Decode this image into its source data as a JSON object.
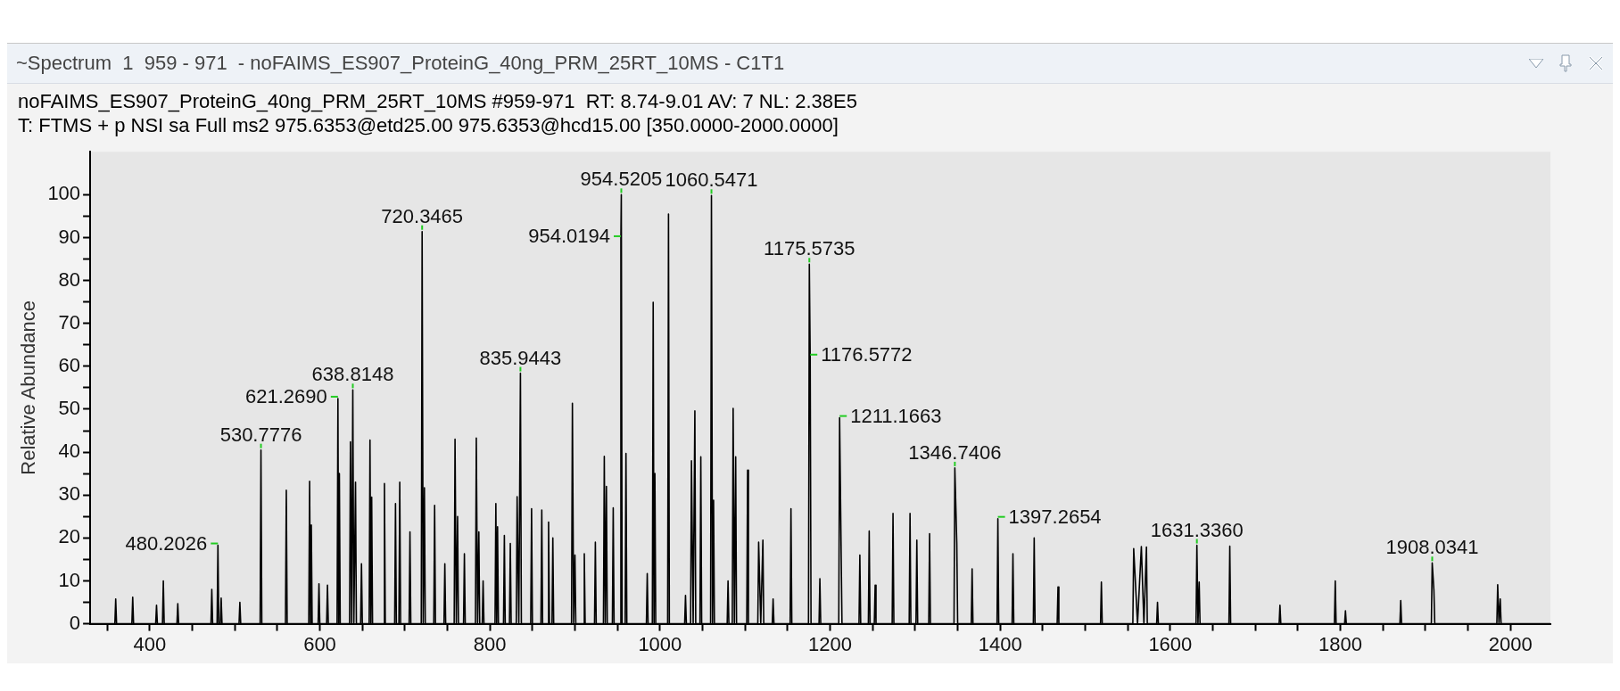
{
  "chart_data": {
    "type": "line",
    "title": "~Spectrum  1  959 - 971  - noFAIMS_ES907_ProteinG_40ng_PRM_25RT_10MS - C1T1",
    "subtitle": "noFAIMS_ES907_ProteinG_40ng_PRM_25RT_10MS #959-971  RT: 8.74-9.01 AV: 7 NL: 2.38E5",
    "ylabel": "Relative Abundance",
    "marker": "none",
    "line_style": "solid",
    "xlim": [
      330,
      2047
    ],
    "ylim": [
      0,
      110
    ],
    "xticks": [
      {
        "value": 350,
        "label": null
      },
      400,
      {
        "value": 450,
        "label": null
      },
      {
        "value": 500,
        "label": null
      },
      {
        "value": 550,
        "label": null
      },
      600,
      {
        "value": 650,
        "label": null
      },
      {
        "value": 700,
        "label": null
      },
      {
        "value": 750,
        "label": null
      },
      800,
      {
        "value": 850,
        "label": null
      },
      {
        "value": 900,
        "label": null
      },
      {
        "value": 950,
        "label": null
      },
      1000,
      {
        "value": 1050,
        "label": null
      },
      {
        "value": 1100,
        "label": null
      },
      {
        "value": 1150,
        "label": null
      },
      1200,
      {
        "value": 1250,
        "label": null
      },
      {
        "value": 1300,
        "label": null
      },
      {
        "value": 1350,
        "label": null
      },
      1400,
      {
        "value": 1450,
        "label": null
      },
      {
        "value": 1500,
        "label": null
      },
      {
        "value": 1550,
        "label": null
      },
      1600,
      {
        "value": 1650,
        "label": null
      },
      {
        "value": 1700,
        "label": null
      },
      {
        "value": 1750,
        "label": null
      },
      1800,
      {
        "value": 1850,
        "label": null
      },
      {
        "value": 1900,
        "label": null
      },
      {
        "value": 1950,
        "label": null
      },
      2000
    ],
    "yticks": [
      0,
      {
        "value": 5,
        "label": null
      },
      10,
      {
        "value": 15,
        "label": null
      },
      20,
      {
        "value": 25,
        "label": null
      },
      30,
      {
        "value": 35,
        "label": null
      },
      40,
      {
        "value": 45,
        "label": null
      },
      50,
      {
        "value": 55,
        "label": null
      },
      60,
      {
        "value": 65,
        "label": null
      },
      70,
      {
        "value": 75,
        "label": null
      },
      80,
      {
        "value": 85,
        "label": null
      },
      90,
      {
        "value": 95,
        "label": null
      },
      100
    ],
    "annotations": [
      "T: FTMS + p NSI sa Full ms2 975.6353@etd25.00 975.6353@hcd15.00 [350.0000-2000.0000]",
      {
        "text": "954.5205",
        "x": 954.5,
        "y": 100
      },
      {
        "text": "1060.5471",
        "x": 1060.5,
        "y": 99.8
      },
      {
        "text": "720.3465",
        "x": 720.3,
        "y": 91.4
      },
      {
        "text": "954.0194",
        "x": 954,
        "y": 89.9
      },
      {
        "text": "1175.5735",
        "x": 1175.6,
        "y": 83.8
      },
      {
        "text": "1176.5772",
        "x": 1176.6,
        "y": 62.3
      },
      {
        "text": "835.9443",
        "x": 835.9,
        "y": 58.4
      },
      {
        "text": "621.2690",
        "x": 621.3,
        "y": 52.5
      },
      {
        "text": "638.8148",
        "x": 638.8,
        "y": 54.5
      },
      {
        "text": "1211.1663",
        "x": 1211.2,
        "y": 48
      },
      {
        "text": "530.7776",
        "x": 530.8,
        "y": 40.5
      },
      {
        "text": "1346.7406",
        "x": 1346.7,
        "y": 36.3
      },
      {
        "text": "1397.2654",
        "x": 1397.3,
        "y": 24.5
      },
      {
        "text": "480.2026",
        "x": 480.2,
        "y": 18.3
      },
      {
        "text": "1631.3360",
        "x": 1631.3,
        "y": 18.3
      },
      {
        "text": "1908.0341",
        "x": 1908,
        "y": 14.2
      }
    ],
    "series": [
      {
        "color": "#000000",
        "x": [
          331,
          359,
          360,
          361,
          379,
          380,
          381,
          407,
          408,
          409,
          415,
          416,
          417,
          432,
          433,
          434,
          472,
          473,
          474,
          479.2,
          480.2,
          481.2,
          483,
          484,
          485,
          505,
          506,
          507,
          529.8,
          530.8,
          531.8,
          559.6,
          560.6,
          561.6,
          587,
          588,
          589,
          590,
          591,
          598,
          599,
          600,
          608,
          609,
          610,
          620.3,
          621.3,
          622.2,
          623,
          624,
          635,
          636,
          637.4,
          638.8,
          640,
          642,
          643,
          648,
          649,
          650,
          658,
          659,
          660,
          661,
          662,
          675,
          676,
          677,
          688,
          689,
          690,
          693,
          694,
          695,
          705,
          706,
          707,
          719.3,
          720.3,
          721.6,
          723,
          724,
          734,
          735,
          736,
          746,
          747,
          748,
          758,
          759,
          760.5,
          762,
          763,
          769,
          770,
          771,
          783,
          784,
          785.5,
          787,
          788,
          791,
          792,
          793,
          806,
          807,
          808,
          809,
          810,
          816,
          817,
          818,
          823,
          824,
          825,
          831,
          832,
          834,
          835.9,
          837,
          848,
          849,
          850,
          860,
          861,
          862,
          868,
          869,
          870,
          873,
          874,
          875,
          896,
          897,
          898.5,
          900,
          901,
          910,
          911,
          912,
          923,
          924,
          925,
          933.5,
          934.5,
          935.7,
          937,
          938,
          944,
          945,
          946,
          953,
          954,
          954.5,
          955.5,
          959,
          960,
          961,
          984,
          985,
          986,
          991,
          992,
          993,
          994,
          995,
          1009,
          1010,
          1011,
          1029,
          1030,
          1031,
          1036,
          1037,
          1039,
          1041,
          1042,
          1047,
          1048,
          1049,
          1059.5,
          1060.5,
          1061.8,
          1063,
          1064,
          1079,
          1080,
          1081,
          1085,
          1086,
          1087.5,
          1089,
          1090,
          1102,
          1103,
          1104,
          1115,
          1116,
          1118.5,
          1121,
          1122,
          1132,
          1133,
          1134,
          1153,
          1154,
          1155,
          1174.6,
          1175.6,
          1176.6,
          1177.6,
          1187,
          1188,
          1189,
          1210.2,
          1211.2,
          1213,
          1214,
          1234,
          1235,
          1236,
          1245,
          1246,
          1247,
          1252,
          1253,
          1254,
          1273,
          1274,
          1275,
          1293,
          1294,
          1295,
          1301,
          1302,
          1303,
          1316,
          1317,
          1318,
          1345.7,
          1346.7,
          1349,
          1350,
          1366,
          1367,
          1368,
          1396.3,
          1397.3,
          1398.3,
          1414,
          1415,
          1416,
          1439,
          1440,
          1441,
          1467,
          1468,
          1469,
          1518,
          1519,
          1520,
          1556,
          1557,
          1561.5,
          1566,
          1569,
          1572,
          1573,
          1584,
          1585,
          1586,
          1630.3,
          1631.3,
          1632.6,
          1634,
          1635,
          1669,
          1670,
          1671,
          1728,
          1729,
          1730,
          1793,
          1794,
          1795,
          1805,
          1806,
          1807,
          1870,
          1871,
          1872,
          1907,
          1908,
          1910,
          1911,
          1984,
          1985,
          1986.5,
          1988,
          1989,
          2047
        ],
        "values": [
          0,
          0,
          5.8,
          0,
          0,
          6.2,
          0,
          0,
          4.3,
          0,
          0,
          10,
          0,
          0,
          4.7,
          0,
          0,
          8,
          0,
          0,
          18.3,
          0,
          0,
          6,
          0,
          0,
          5,
          0,
          0,
          40.5,
          0,
          0,
          31.1,
          0,
          0,
          33.2,
          0,
          23,
          0,
          0,
          9.3,
          0,
          0,
          9,
          0,
          0,
          52.5,
          0,
          35,
          0,
          0,
          42.4,
          0,
          54.5,
          0,
          33,
          0,
          0,
          14,
          0,
          0,
          42.8,
          0,
          29.5,
          0,
          0,
          32.7,
          0,
          0,
          28,
          0,
          0,
          33,
          0,
          0,
          21.4,
          0,
          0,
          91.4,
          0,
          31.7,
          0,
          0,
          27.6,
          0,
          0,
          14,
          0,
          0,
          43,
          0,
          25,
          0,
          0,
          16.3,
          0,
          0,
          43.3,
          0,
          21.4,
          0,
          0,
          10,
          0,
          0,
          28,
          0,
          22.6,
          0,
          0,
          20.6,
          0,
          0,
          18.7,
          0,
          0,
          29.6,
          0,
          58.4,
          0,
          0,
          26.8,
          0,
          0,
          26.5,
          0,
          0,
          23.7,
          0,
          0,
          20,
          0,
          0,
          51.4,
          0,
          16,
          0,
          0,
          16.3,
          0,
          0,
          19,
          0,
          0,
          39,
          0,
          32,
          0,
          0,
          27,
          0,
          0,
          89.9,
          100,
          0,
          0,
          39.7,
          0,
          0,
          11.7,
          0,
          0,
          74.9,
          0,
          35,
          0,
          0,
          95.5,
          0,
          0,
          6.6,
          0,
          0,
          38,
          0,
          49.6,
          0,
          0,
          38.9,
          0,
          0,
          99.8,
          0,
          28.8,
          0,
          0,
          10,
          0,
          0,
          50.2,
          0,
          38.9,
          0,
          0,
          35.8,
          0,
          0,
          19,
          0,
          19.5,
          0,
          0,
          5.8,
          0,
          0,
          26.8,
          0,
          0,
          83.8,
          62.3,
          0,
          0,
          10.5,
          0,
          0,
          48,
          16.7,
          0,
          0,
          16,
          0,
          0,
          21.6,
          0,
          0,
          9,
          0,
          0,
          25.7,
          0,
          0,
          25.7,
          0,
          0,
          19.5,
          0,
          0,
          21,
          0,
          0,
          36.3,
          18.7,
          0,
          0,
          12.8,
          0,
          0,
          24.5,
          0,
          0,
          16.3,
          0,
          0,
          20,
          0,
          0,
          8.6,
          0,
          0,
          9.7,
          0,
          0,
          17.5,
          0,
          18,
          0,
          17.9,
          0,
          0,
          5,
          0,
          0,
          18.3,
          0,
          9.7,
          0,
          0,
          18.1,
          0,
          0,
          4.3,
          0,
          0,
          10,
          0,
          0,
          3,
          0,
          0,
          5.4,
          0,
          0,
          14.2,
          7.8,
          0,
          0,
          9.1,
          0,
          5.8,
          0,
          0
        ]
      }
    ]
  }
}
